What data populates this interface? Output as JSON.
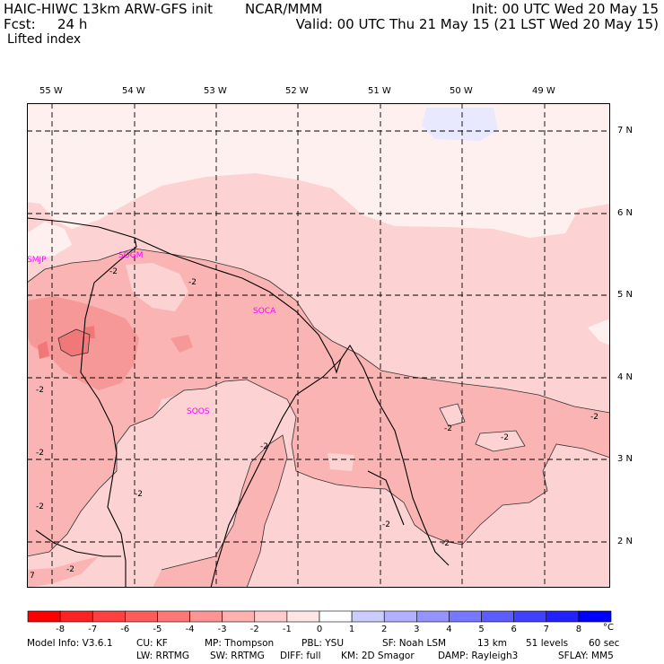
{
  "header": {
    "title": "HAIC-HIWC 13km ARW-GFS init",
    "org": "NCAR/MMM",
    "fcst_label": "Fcst:",
    "fcst_value": "24 h",
    "field": "Lifted index",
    "init": "Init: 00 UTC Wed 20 May 15",
    "valid": "Valid: 00 UTC Thu 21 May 15 (21 LST Wed 20 May 15)"
  },
  "map": {
    "lon_labels": [
      "55 W",
      "54 W",
      "53 W",
      "52 W",
      "51 W",
      "50 W",
      "49 W"
    ],
    "lat_labels": [
      "7 N",
      "6 N",
      "5 N",
      "4 N",
      "3 N",
      "2 N"
    ],
    "stations": [
      "SMJP",
      "SOGM",
      "SOCA",
      "SOOS"
    ],
    "contour_label": "-2",
    "corner_mark": "7",
    "colors": {
      "fill_minus1": "#fdd2d2",
      "fill_minus2": "#fbb4b4",
      "fill_minus3": "#f79898",
      "fill_minus4": "#f07878",
      "fill_zero": "#fff0f0",
      "fill_plus1": "#e8e8ff",
      "station_text": "#ff00ff"
    }
  },
  "colorbar": {
    "ticks": [
      "-8",
      "-7",
      "-6",
      "-5",
      "-4",
      "-3",
      "-2",
      "-1",
      "0",
      "1",
      "2",
      "3",
      "4",
      "5",
      "6",
      "7",
      "8"
    ],
    "unit": "°C",
    "colors": [
      "#ff0000",
      "#ff2222",
      "#ff4040",
      "#ff5c5c",
      "#ff7878",
      "#ff9494",
      "#ffb0b0",
      "#ffcccc",
      "#ffe6e6",
      "#ffffff",
      "#ccccff",
      "#b0b0ff",
      "#9494ff",
      "#7878ff",
      "#5c5cff",
      "#4040ff",
      "#2222ff",
      "#0000ff"
    ]
  },
  "footer": {
    "line1": [
      "Model Info: V3.6.1",
      "CU: KF",
      "MP: Thompson",
      "PBL: YSU",
      "SF: Noah LSM",
      "13 km",
      "51 levels",
      "60 sec"
    ],
    "line2": [
      "LW: RRTMG",
      "SW: RRTMG",
      "DIFF: full",
      "KM: 2D Smagor",
      "DAMP: Rayleigh3",
      "SFLAY: MM5"
    ]
  }
}
